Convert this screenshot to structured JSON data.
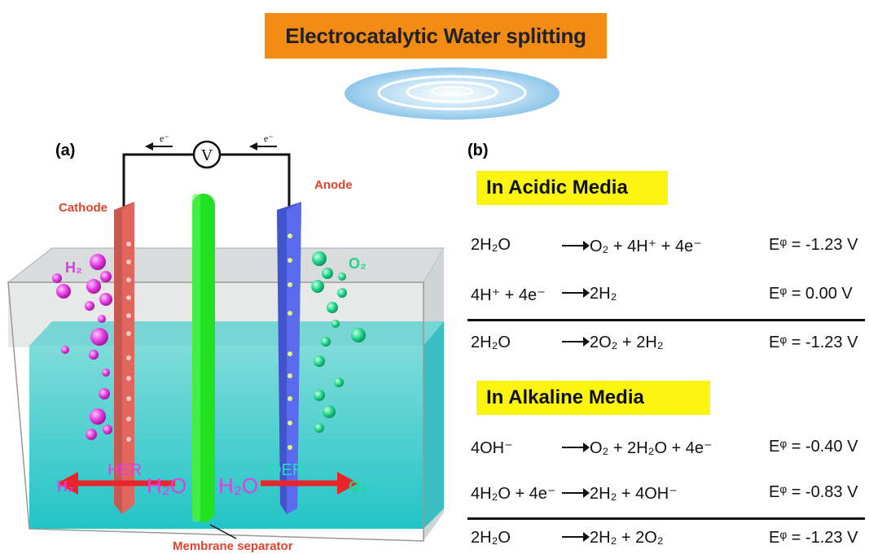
{
  "title": "Electrocatalytic Water splitting",
  "panel_a": {
    "label": "(a)",
    "cathode": "Cathode",
    "anode": "Anode",
    "electron_left": "e⁻",
    "electron_right": "e⁻",
    "voltmeter": "V",
    "h2_top": "H₂",
    "o2_top": "O₂",
    "her": "HER",
    "oer": "OER",
    "h2_bottom": "H₂",
    "o2_bottom": "O₂",
    "h2o_left": "H₂O",
    "h2o_right": "H₂O",
    "membrane": "Membrane separator"
  },
  "panel_b": {
    "label": "(b)",
    "acidic": {
      "heading": "In Acidic Media",
      "reactions": [
        {
          "lhs": "2H₂O",
          "rhs": "O₂ + 4H⁺ + 4e⁻",
          "potential": "Eᵠ = -1.23 V"
        },
        {
          "lhs": "4H⁺ + 4e⁻",
          "rhs": "2H₂",
          "potential": "Eᵠ = 0.00 V"
        },
        {
          "lhs": "2H₂O",
          "rhs": "2O₂ + 2H₂",
          "potential": "Eᵠ = -1.23 V"
        }
      ]
    },
    "alkaline": {
      "heading": "In Alkaline Media",
      "reactions": [
        {
          "lhs": "4OH⁻",
          "rhs": "O₂ + 2H₂O + 4e⁻",
          "potential": "Eᵠ = -0.40 V"
        },
        {
          "lhs": "4H₂O + 4e⁻",
          "rhs": "2H₂ + 4OH⁻",
          "potential": "Eᵠ = -0.83 V"
        },
        {
          "lhs": "2H₂O",
          "rhs": "2H₂ + 2O₂",
          "potential": "Eᵠ = -1.23 V"
        }
      ]
    }
  },
  "colors": {
    "title_bg": "#f38c15",
    "media_bg": "#fbf40f",
    "water": "#2ec6c8",
    "cathode": "#d9534f",
    "anode": "#4a5bd6",
    "membrane": "#22dd22",
    "h2_bubble": "#e23be0",
    "o2_bubble": "#1ed68a",
    "arrow": "#e8252a"
  }
}
